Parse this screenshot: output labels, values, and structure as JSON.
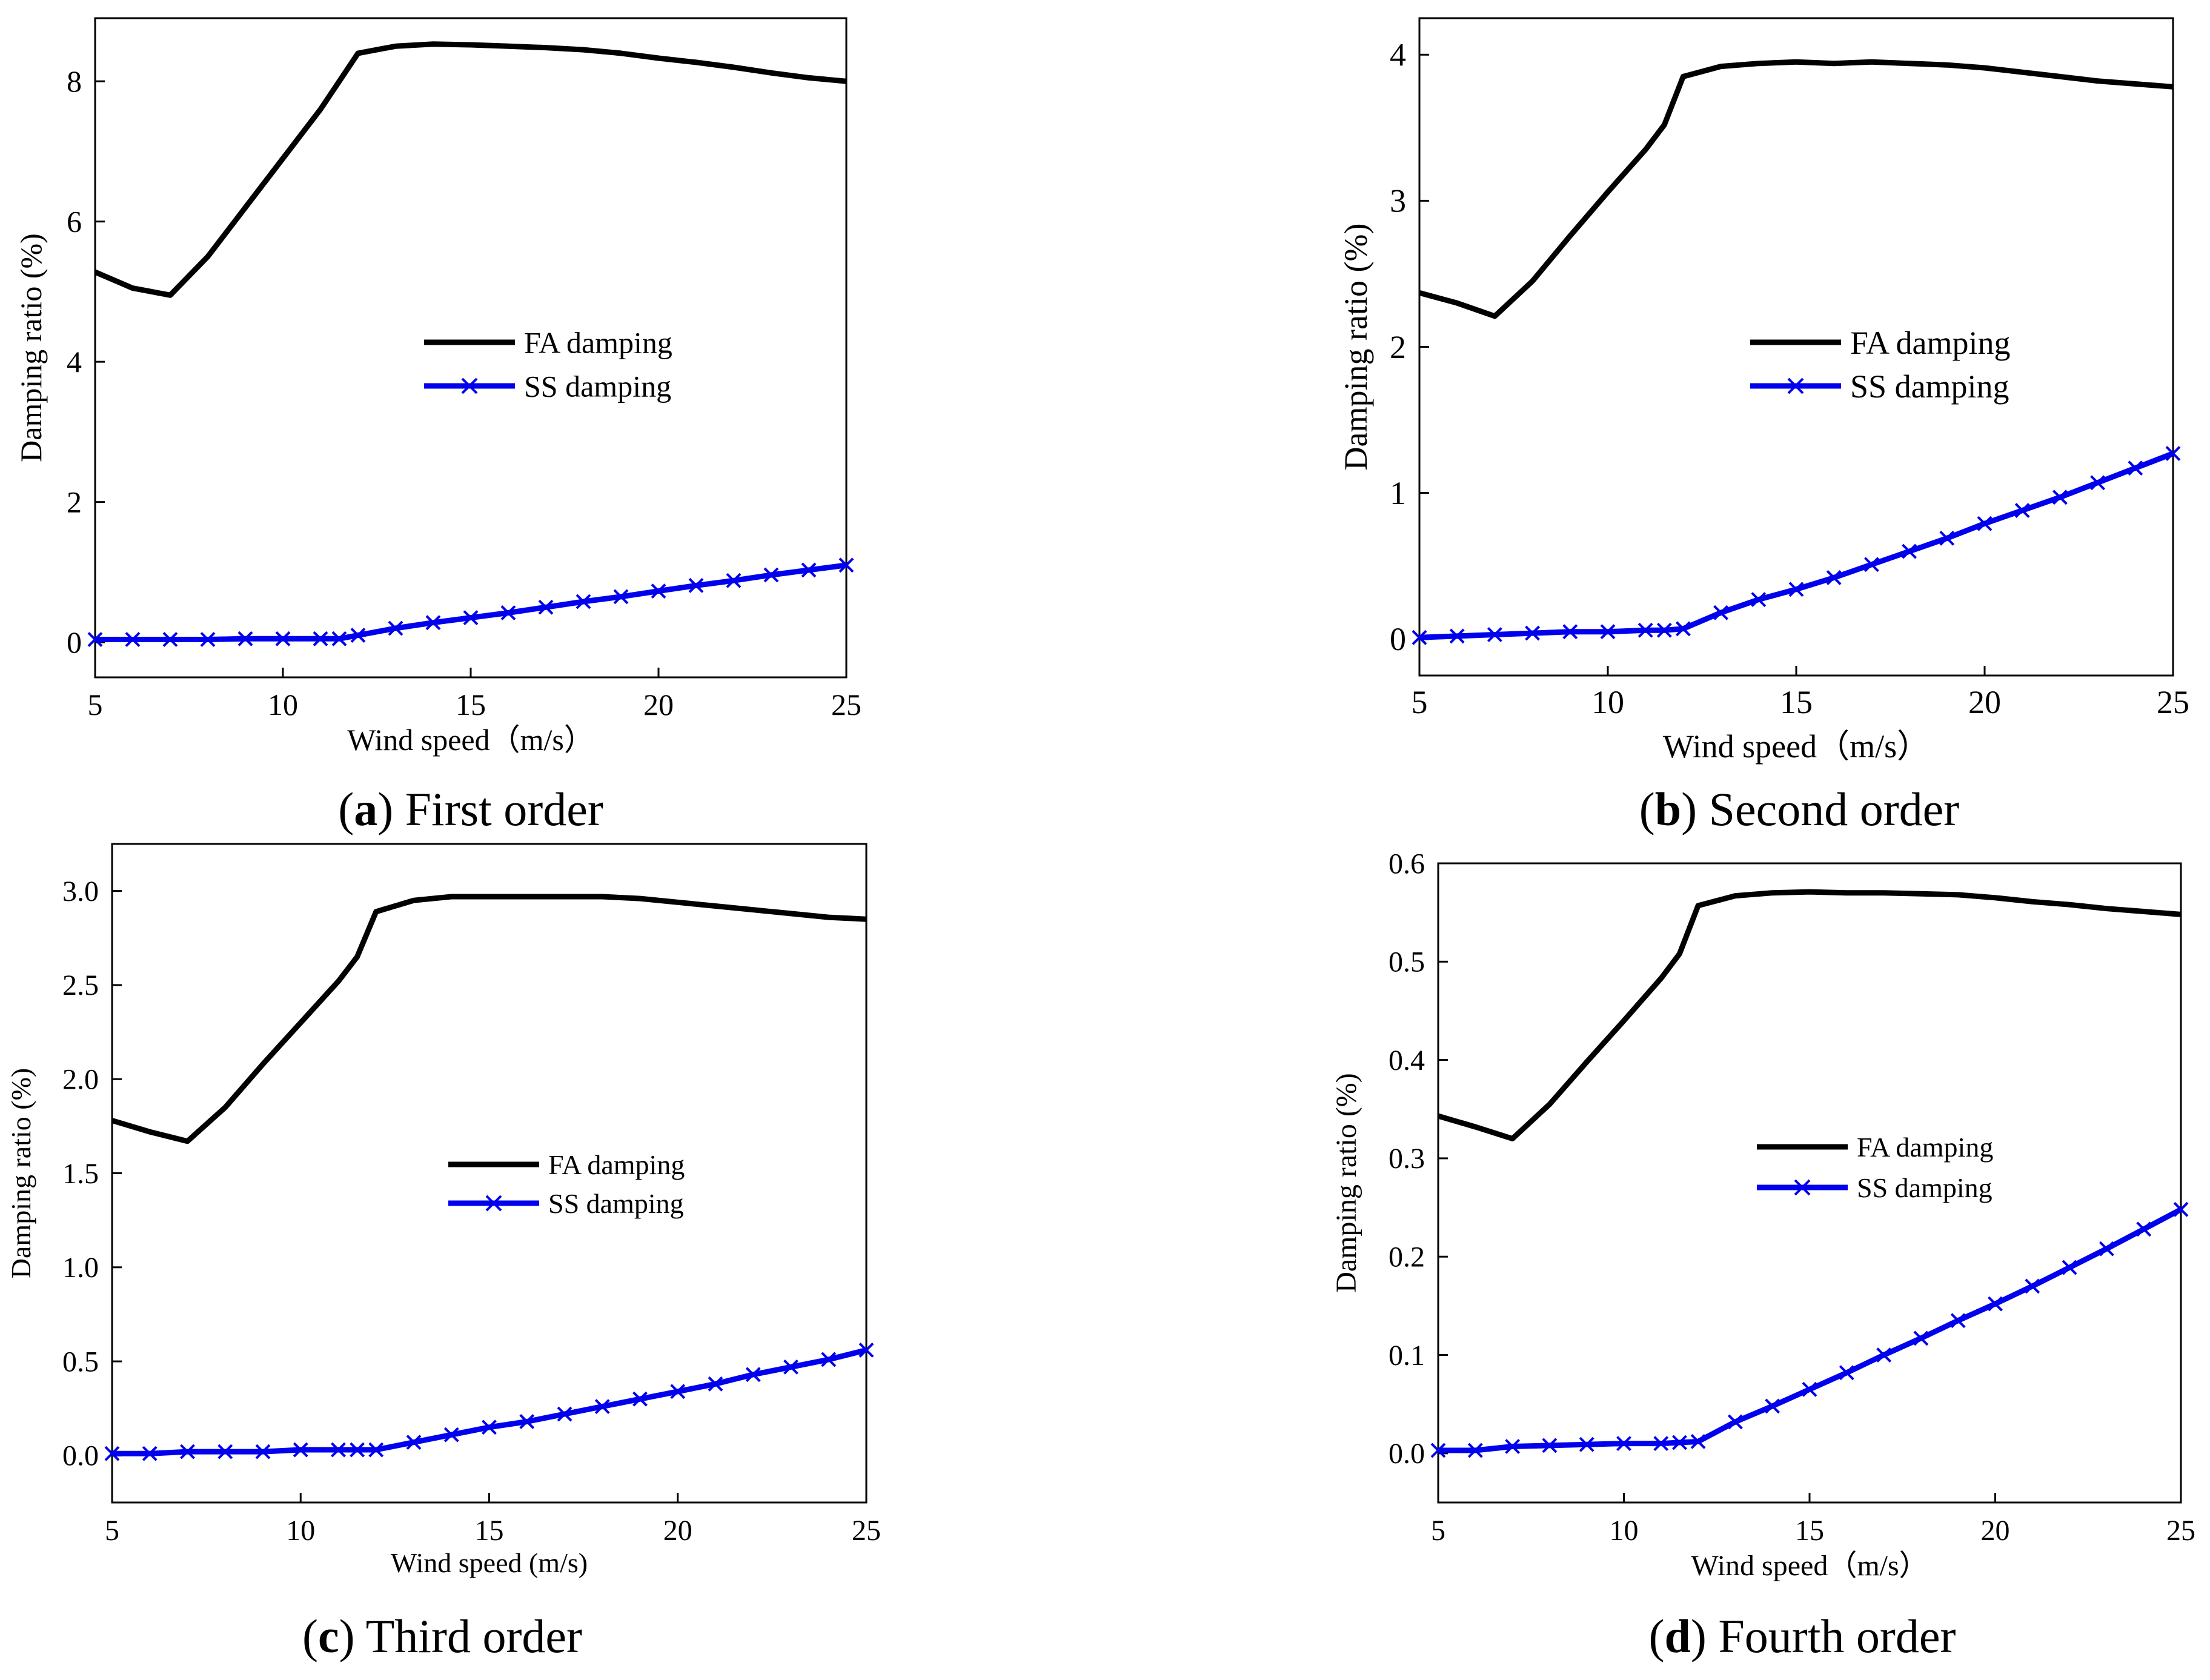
{
  "figure": {
    "panels": [
      {
        "caption_letter": "a",
        "caption_text": "First order"
      },
      {
        "caption_letter": "b",
        "caption_text": "Second order"
      },
      {
        "caption_letter": "c",
        "caption_text": "Third order"
      },
      {
        "caption_letter": "d",
        "caption_text": "Fourth order"
      }
    ]
  },
  "colors": {
    "fa": "#000000",
    "ss": "#0000ee",
    "axis": "#000000"
  },
  "chart_data": [
    {
      "type": "line",
      "xlabel": "Wind speed（m/s）",
      "ylabel": "Damping ratio (%)",
      "xlim": [
        5,
        25
      ],
      "ylim": [
        -0.5,
        8.9
      ],
      "xticks": [
        5,
        10,
        15,
        20,
        25
      ],
      "xtick_labels": [
        "5",
        "10",
        "15",
        "20",
        "25"
      ],
      "yticks": [
        0,
        2,
        4,
        6,
        8
      ],
      "ytick_labels": [
        "0",
        "2",
        "4",
        "6",
        "8"
      ],
      "legend_position": "center-right",
      "series": [
        {
          "name": "FA damping",
          "marker": "none",
          "x": [
            5,
            6,
            7,
            8,
            9,
            10,
            11,
            12,
            13,
            14,
            15,
            16,
            17,
            18,
            19,
            20,
            21,
            22,
            23,
            24,
            25
          ],
          "y": [
            5.28,
            5.05,
            4.95,
            5.5,
            6.2,
            6.9,
            7.6,
            8.4,
            8.5,
            8.53,
            8.52,
            8.5,
            8.48,
            8.45,
            8.4,
            8.33,
            8.27,
            8.2,
            8.12,
            8.05,
            8.0
          ]
        },
        {
          "name": "SS damping",
          "marker": "x",
          "x": [
            5,
            6,
            7,
            8,
            9,
            10,
            11,
            11.5,
            12,
            13,
            14,
            15,
            16,
            17,
            18,
            19,
            20,
            21,
            22,
            23,
            24,
            25
          ],
          "y": [
            0.04,
            0.04,
            0.04,
            0.04,
            0.05,
            0.05,
            0.05,
            0.05,
            0.1,
            0.2,
            0.28,
            0.35,
            0.42,
            0.5,
            0.58,
            0.65,
            0.73,
            0.81,
            0.88,
            0.96,
            1.03,
            1.1
          ]
        }
      ]
    },
    {
      "type": "line",
      "xlabel": "Wind speed（m/s）",
      "ylabel": "Damping ratio (%)",
      "xlim": [
        5,
        25
      ],
      "ylim": [
        -0.25,
        4.25
      ],
      "xticks": [
        5,
        10,
        15,
        20,
        25
      ],
      "xtick_labels": [
        "5",
        "10",
        "15",
        "20",
        "25"
      ],
      "yticks": [
        0,
        1,
        2,
        3,
        4
      ],
      "ytick_labels": [
        "0",
        "1",
        "2",
        "3",
        "4"
      ],
      "legend_position": "center-right",
      "series": [
        {
          "name": "FA damping",
          "marker": "none",
          "x": [
            5,
            6,
            7,
            8,
            9,
            10,
            11,
            11.5,
            12,
            13,
            14,
            15,
            16,
            17,
            18,
            19,
            20,
            21,
            22,
            23,
            24,
            25
          ],
          "y": [
            2.37,
            2.3,
            2.21,
            2.45,
            2.76,
            3.06,
            3.35,
            3.52,
            3.85,
            3.92,
            3.94,
            3.95,
            3.94,
            3.95,
            3.94,
            3.93,
            3.91,
            3.88,
            3.85,
            3.82,
            3.8,
            3.78
          ]
        },
        {
          "name": "SS damping",
          "marker": "x",
          "x": [
            5,
            6,
            7,
            8,
            9,
            10,
            11,
            11.5,
            12,
            13,
            14,
            15,
            16,
            17,
            18,
            19,
            20,
            21,
            22,
            23,
            24,
            25
          ],
          "y": [
            0.01,
            0.02,
            0.03,
            0.04,
            0.05,
            0.05,
            0.06,
            0.06,
            0.07,
            0.18,
            0.27,
            0.34,
            0.42,
            0.51,
            0.6,
            0.69,
            0.79,
            0.88,
            0.97,
            1.07,
            1.17,
            1.27
          ]
        }
      ]
    },
    {
      "type": "line",
      "xlabel": "Wind speed (m/s)",
      "ylabel": "Damping ratio (%)",
      "xlim": [
        5,
        25
      ],
      "ylim": [
        -0.25,
        3.25
      ],
      "xticks": [
        5,
        10,
        15,
        20,
        25
      ],
      "xtick_labels": [
        "5",
        "10",
        "15",
        "20",
        "25"
      ],
      "yticks": [
        0,
        0.5,
        1,
        1.5,
        2,
        2.5,
        3
      ],
      "ytick_labels": [
        "0.0",
        "0.5",
        "1.0",
        "1.5",
        "2.0",
        "2.5",
        "3.0"
      ],
      "legend_position": "center-right",
      "series": [
        {
          "name": "FA damping",
          "marker": "none",
          "x": [
            5,
            6,
            7,
            8,
            9,
            10,
            11,
            11.5,
            12,
            13,
            14,
            15,
            16,
            17,
            18,
            19,
            20,
            21,
            22,
            23,
            24,
            25
          ],
          "y": [
            1.78,
            1.72,
            1.67,
            1.85,
            2.08,
            2.3,
            2.52,
            2.65,
            2.89,
            2.95,
            2.97,
            2.97,
            2.97,
            2.97,
            2.97,
            2.96,
            2.94,
            2.92,
            2.9,
            2.88,
            2.86,
            2.85
          ]
        },
        {
          "name": "SS damping",
          "marker": "x",
          "x": [
            5,
            6,
            7,
            8,
            9,
            10,
            11,
            11.5,
            12,
            13,
            14,
            15,
            16,
            17,
            18,
            19,
            20,
            21,
            22,
            23,
            24,
            25
          ],
          "y": [
            0.01,
            0.01,
            0.02,
            0.02,
            0.02,
            0.03,
            0.03,
            0.03,
            0.03,
            0.07,
            0.11,
            0.15,
            0.18,
            0.22,
            0.26,
            0.3,
            0.34,
            0.38,
            0.43,
            0.47,
            0.51,
            0.56
          ]
        }
      ]
    },
    {
      "type": "line",
      "xlabel": "Wind speed（m/s）",
      "ylabel": "Damping ratio (%)",
      "xlim": [
        5,
        25
      ],
      "ylim": [
        -0.05,
        0.6
      ],
      "xticks": [
        5,
        10,
        15,
        20,
        25
      ],
      "xtick_labels": [
        "5",
        "10",
        "15",
        "20",
        "25"
      ],
      "yticks": [
        0,
        0.1,
        0.2,
        0.3,
        0.4,
        0.5,
        0.6
      ],
      "ytick_labels": [
        "0.0",
        "0.1",
        "0.2",
        "0.3",
        "0.4",
        "0.5",
        "0.6"
      ],
      "legend_position": "center-right",
      "series": [
        {
          "name": "FA damping",
          "marker": "none",
          "x": [
            5,
            6,
            7,
            8,
            9,
            10,
            11,
            11.5,
            12,
            13,
            14,
            15,
            16,
            17,
            18,
            19,
            20,
            21,
            22,
            23,
            24,
            25
          ],
          "y": [
            0.343,
            0.332,
            0.32,
            0.355,
            0.398,
            0.44,
            0.483,
            0.508,
            0.557,
            0.567,
            0.57,
            0.571,
            0.57,
            0.57,
            0.569,
            0.568,
            0.565,
            0.561,
            0.558,
            0.554,
            0.551,
            0.548
          ]
        },
        {
          "name": "SS damping",
          "marker": "x",
          "x": [
            5,
            6,
            7,
            8,
            9,
            10,
            11,
            11.5,
            12,
            13,
            14,
            15,
            16,
            17,
            18,
            19,
            20,
            21,
            22,
            23,
            24,
            25
          ],
          "y": [
            0.003,
            0.003,
            0.007,
            0.008,
            0.009,
            0.01,
            0.01,
            0.011,
            0.012,
            0.032,
            0.048,
            0.065,
            0.082,
            0.1,
            0.117,
            0.135,
            0.152,
            0.17,
            0.189,
            0.208,
            0.228,
            0.248
          ]
        }
      ]
    }
  ]
}
